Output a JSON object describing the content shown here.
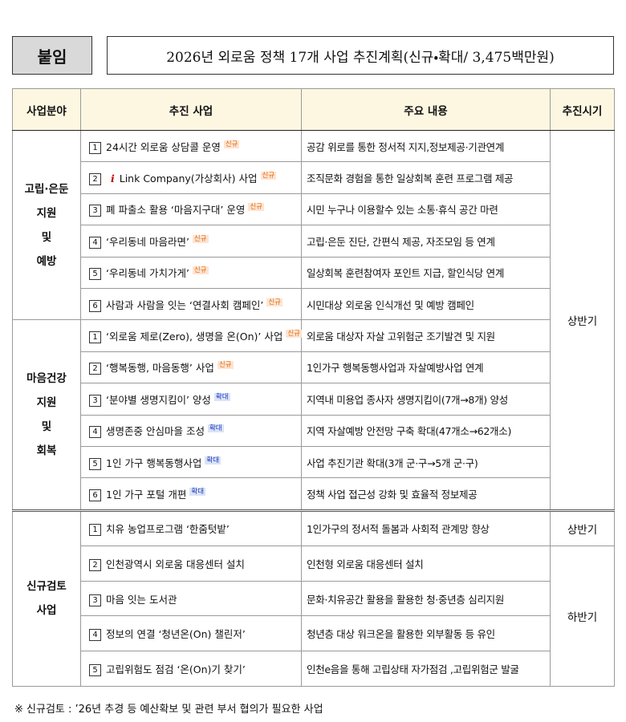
{
  "header": {
    "badge": "붙임",
    "title": "2026년 외로움 정책 17개 사업 추진계획(신규・확대/ 3,475백만원)"
  },
  "table": {
    "columns": [
      "사업분야",
      "추진 사업",
      "주요 내용",
      "추진시기"
    ],
    "groups": [
      {
        "field": [
          "고립·은둔",
          "지원",
          "및",
          "예방"
        ],
        "rows": [
          {
            "num": 1,
            "name": "24시간 외로움 상담콜 운영",
            "tag": "신규",
            "content": "공감 위로를 통한 정서적 지지,정보제공·기관연계"
          },
          {
            "num": 2,
            "name": "Link Company(가상회사) 사업",
            "tag": "신규",
            "content": "조직문화 경험을 통한 일상회복 훈련 프로그램 제공"
          },
          {
            "num": 3,
            "name": "폐 파출소 활용 ‘마음지구대’ 운영",
            "tag": "신규",
            "content": "시민 누구나 이용할수 있는 소통·휴식 공간 마련"
          },
          {
            "num": 4,
            "name": "‘우리동네 마음라면’",
            "tag": "신규",
            "content": "고립·은둔 진단, 간편식 제공, 자조모임 등 연계"
          },
          {
            "num": 5,
            "name": "‘우리동네 가치가게’",
            "tag": "신규",
            "content": "일상회복 훈련참여자 포인트 지급, 할인식당 연계"
          },
          {
            "num": 6,
            "name": "사람과 사람을 잇는 ‘연결사회 캠페인’",
            "tag": "신규",
            "content": "시민대상 외로움 인식개선 및 예방 캠페인"
          }
        ]
      },
      {
        "field": [
          "마음건강",
          "지원",
          "및",
          "회복"
        ],
        "rows": [
          {
            "num": 1,
            "name": "‘외로움 제로(Zero), 생명을 온(On)’ 사업",
            "tag": "신규",
            "content": "외로움 대상자 자살 고위험군 조기발견 및 지원"
          },
          {
            "num": 2,
            "name": "‘행복동행, 마음동행’ 사업",
            "tag": "신규",
            "content": "1인가구 행복동행사업과 자살예방사업 연계"
          },
          {
            "num": 3,
            "name": "‘분야별 생명지킴이’ 양성",
            "tag": "확대",
            "content": "지역내 미용업 종사자 생명지킴이(7개→8개) 양성"
          },
          {
            "num": 4,
            "name": "생명존중 안심마을 조성",
            "tag": "확대",
            "content": "지역 자살예방 안전망 구축 확대(47개소→62개소)"
          },
          {
            "num": 5,
            "name": "1인 가구 행복동행사업",
            "tag": "확대",
            "content": "사업 추진기관 확대(3개 군·구→5개 군·구)"
          },
          {
            "num": 6,
            "name": "1인 가구 포털 개편",
            "tag": "확대",
            "content": "정책 사업 접근성 강화 및 효율적 정보제공"
          }
        ]
      },
      {
        "field": [
          "신규검토",
          "사업"
        ],
        "rows": [
          {
            "num": 1,
            "name": "치유 농업프로그램 ‘한줌텃밭’",
            "content": "1인가구의 정서적 돌봄과 사회적 관계망 향상"
          },
          {
            "num": 2,
            "name": "인천광역시 외로움 대응센터 설치",
            "content": "인천형 외로움 대응센터 설치"
          },
          {
            "num": 3,
            "name": "마음 잇는 도서관",
            "content": "문화·치유공간 활용을 활용한 청·중년층 심리지원"
          },
          {
            "num": 4,
            "name": "정보의 연결 ‘청년온(On) 챌린저’",
            "content": "청년층 대상 워크온을 활용한 외부활동 등 유인"
          },
          {
            "num": 5,
            "name": "고립위험도 점검 ‘온(On)기 찾기’",
            "content": "인천e음을 통해 고립상태 자가점검 ,고립위험군 발굴"
          }
        ]
      }
    ],
    "periods": [
      "상반기",
      "상반기",
      "하반기"
    ]
  },
  "footnote": "※ 신규검토 :  ’26년 추경 등 예산확보 및 관련 부서 협의가 필요한 사업"
}
